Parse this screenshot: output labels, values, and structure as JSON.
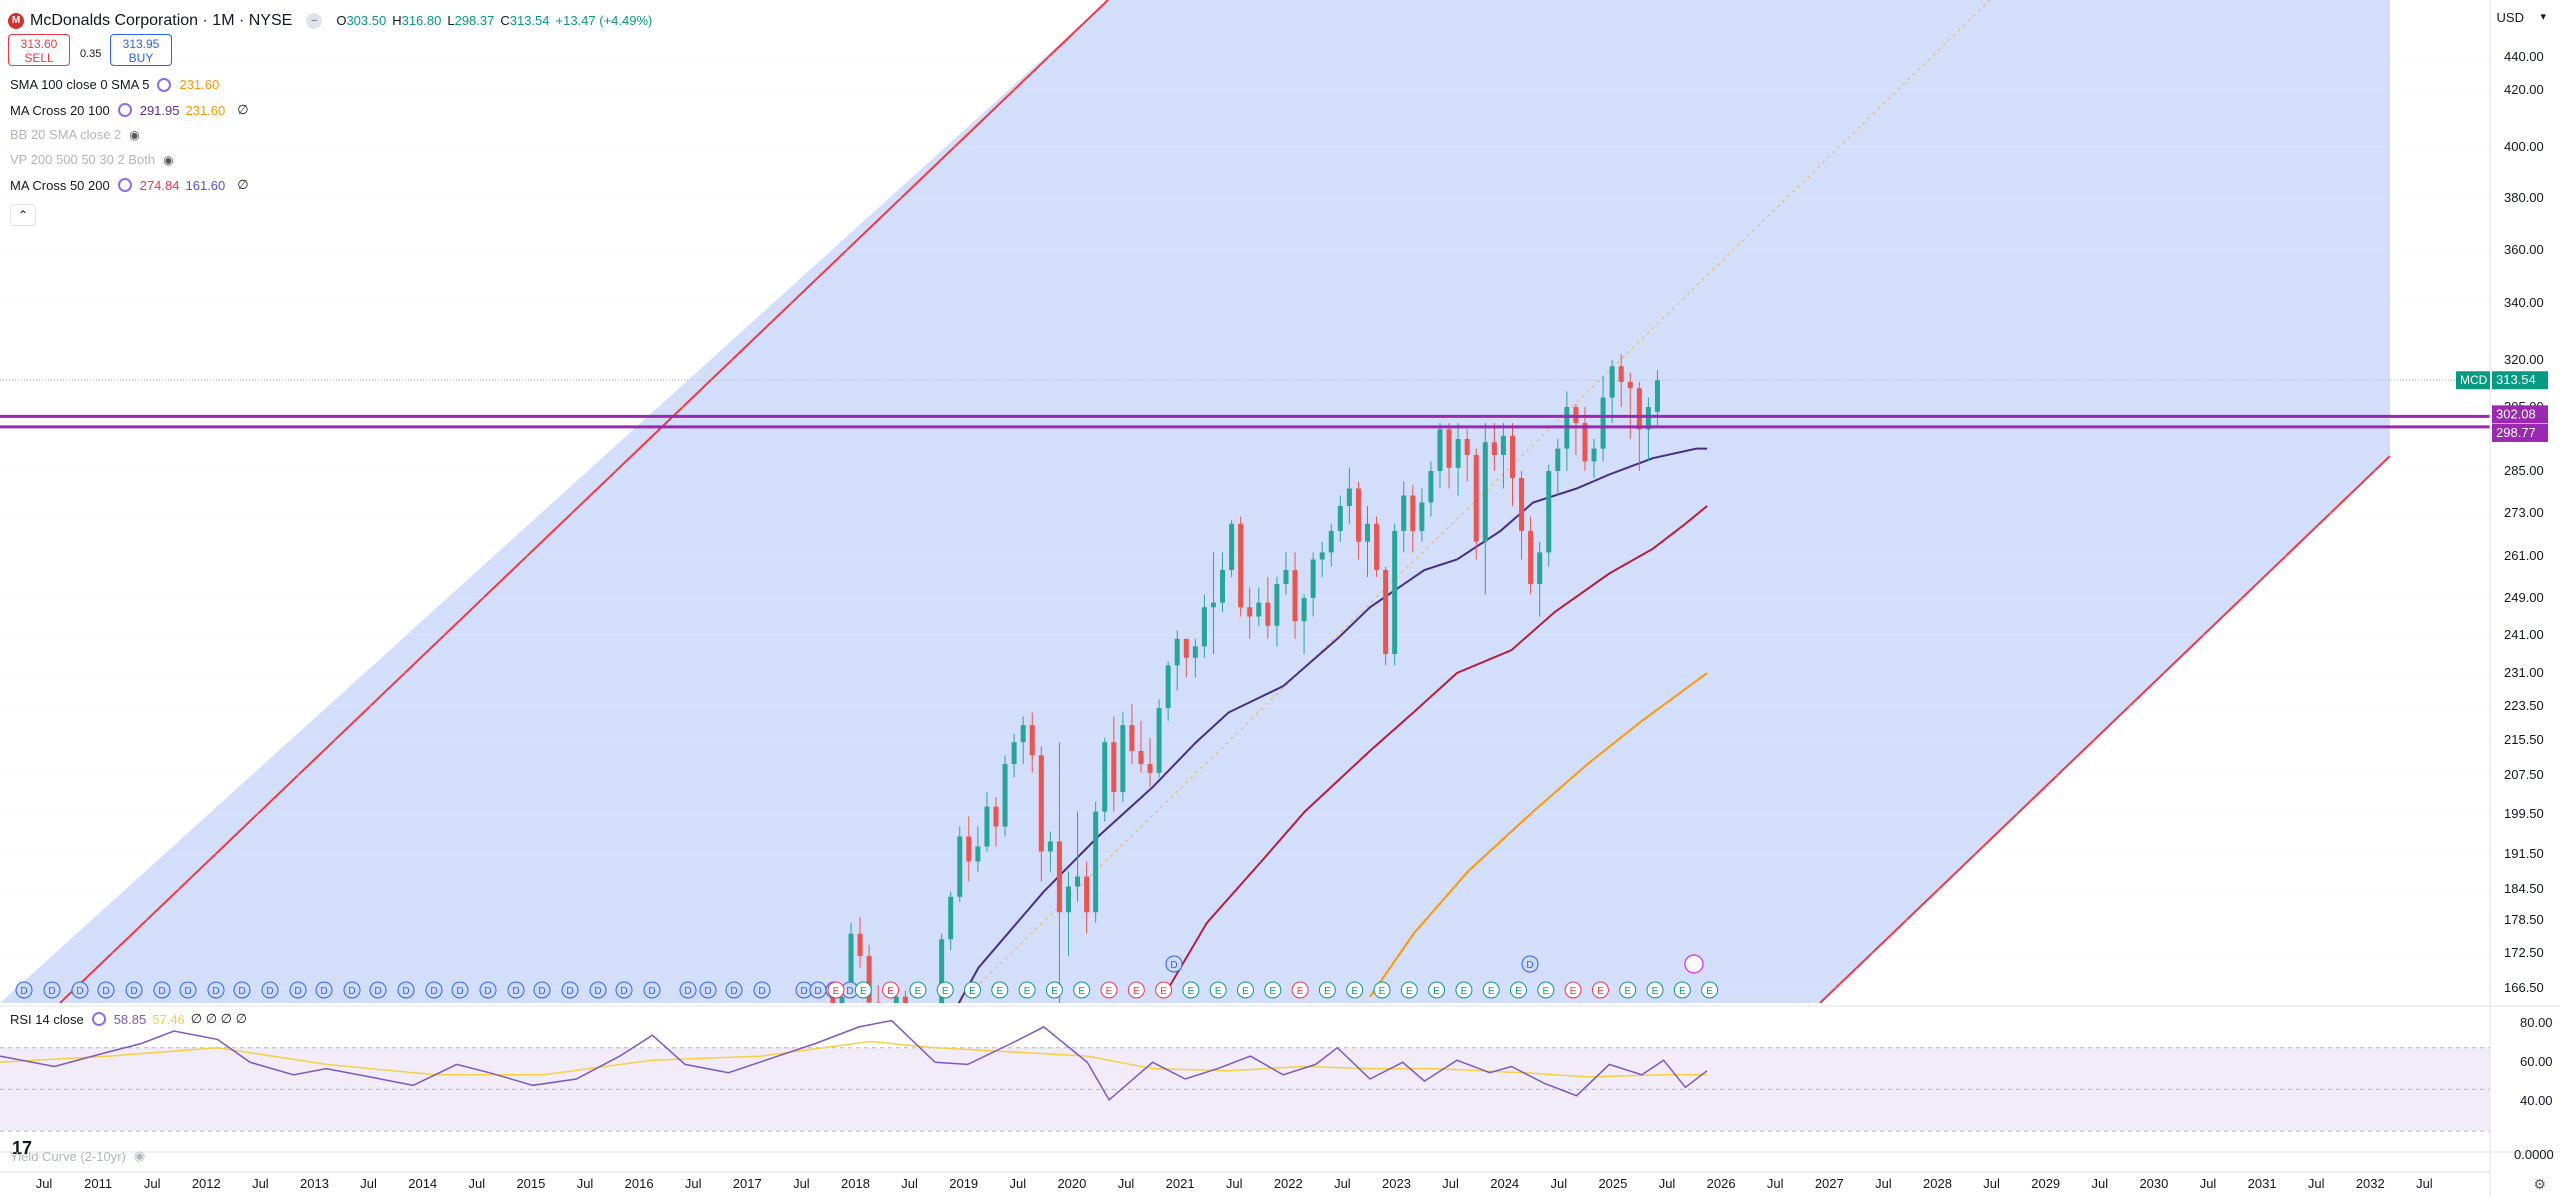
{
  "header": {
    "symbol_badge": "M",
    "title": "McDonalds Corporation · 1M · NYSE",
    "ohlc": [
      {
        "k": "O",
        "v": "303.50"
      },
      {
        "k": "H",
        "v": "316.80"
      },
      {
        "k": "L",
        "v": "298.37"
      },
      {
        "k": "C",
        "v": "313.54"
      },
      {
        "k": "",
        "v": "+13.47 (+4.49%)"
      }
    ],
    "sell_price": "313.60",
    "sell_label": "SELL",
    "spread": "0.35",
    "buy_price": "313.95",
    "buy_label": "BUY",
    "currency": "USD"
  },
  "indicators": [
    {
      "name": "SMA 100 close 0 SMA 5",
      "values": [
        "231.60"
      ],
      "colors": [
        "#ff9800"
      ],
      "eye": false,
      "zero": false,
      "muted": false
    },
    {
      "name": "MA Cross 20 100",
      "values": [
        "291.95",
        "231.60"
      ],
      "colors": [
        "#5b2c91",
        "#ff9800"
      ],
      "eye": false,
      "zero": true,
      "muted": false
    },
    {
      "name": "BB 20 SMA close 2",
      "values": [],
      "colors": [],
      "eye": true,
      "zero": false,
      "muted": true
    },
    {
      "name": "VP 200 500 50 30 2 Both",
      "values": [],
      "colors": [],
      "eye": true,
      "zero": false,
      "muted": true
    },
    {
      "name": "MA Cross 50 200",
      "values": [
        "274.84",
        "161.60"
      ],
      "colors": [
        "#f23645",
        "#5b4be0"
      ],
      "eye": false,
      "zero": true,
      "muted": false
    }
  ],
  "rsi": {
    "name": "RSI 14 close",
    "value": "58.85",
    "ma_value": "57.46",
    "extras": "∅ ∅ ∅ ∅",
    "levels": [
      "80.00",
      "60.00",
      "40.00"
    ]
  },
  "yield_curve": {
    "name": "Yield Curve (2-10yr)",
    "value": "0.0000"
  },
  "price_axis": {
    "ticks": [
      "440.00",
      "420.00",
      "400.00",
      "380.00",
      "360.00",
      "340.00",
      "320.00",
      "305.00",
      "285.00",
      "273.00",
      "261.00",
      "249.00",
      "241.00",
      "231.00",
      "223.50",
      "215.50",
      "207.50",
      "199.50",
      "191.50",
      "184.50",
      "178.50",
      "172.50",
      "166.50"
    ],
    "ticker_label": "MCD",
    "last_price": "313.54",
    "level1": "302.08",
    "level2": "298.77"
  },
  "time_axis": [
    "Jul",
    "2011",
    "Jul",
    "2012",
    "Jul",
    "2013",
    "Jul",
    "2014",
    "Jul",
    "2015",
    "Jul",
    "2016",
    "Jul",
    "2017",
    "Jul",
    "2018",
    "Jul",
    "2019",
    "Jul",
    "2020",
    "Jul",
    "2021",
    "Jul",
    "2022",
    "Jul",
    "2023",
    "Jul",
    "2024",
    "Jul",
    "2025",
    "Jul",
    "2026",
    "Jul",
    "2027",
    "Jul",
    "2028",
    "Jul",
    "2029",
    "Jul",
    "2030",
    "Jul",
    "2031",
    "Jul",
    "2032",
    "Jul"
  ],
  "colors": {
    "up": "#26a69a",
    "down": "#ef5350",
    "channel": "#f23645",
    "channel_fill": "#d1dcfb",
    "resistance": "#9c27b0",
    "ma20": "#4a2c86",
    "ma50": "#b71c3c",
    "ma100": "#ff9800",
    "rsi": "#7e57c2",
    "rsi_ma": "#f5d142"
  },
  "chart_data": {
    "type": "candlestick",
    "interval": "1M",
    "ylim": [
      163,
      452
    ],
    "x_period": [
      "2010-02",
      "2032-09"
    ],
    "first_candle": "2017-09",
    "candles": [
      [
        165,
        166,
        160,
        162
      ],
      [
        162,
        166,
        158,
        165
      ],
      [
        165,
        178,
        165,
        176
      ],
      [
        176,
        179,
        170,
        172
      ],
      [
        172,
        174,
        160,
        164
      ],
      [
        164,
        167,
        155,
        157
      ],
      [
        157,
        163,
        155,
        160
      ],
      [
        160,
        167,
        157,
        165
      ],
      [
        165,
        166,
        152,
        155
      ],
      [
        155,
        158,
        145,
        150
      ],
      [
        150,
        158,
        148,
        156
      ],
      [
        156,
        160,
        150,
        158
      ],
      [
        158,
        176,
        157,
        175
      ],
      [
        175,
        184,
        173,
        183
      ],
      [
        183,
        197,
        182,
        195
      ],
      [
        195,
        199,
        186,
        190
      ],
      [
        190,
        197,
        188,
        193
      ],
      [
        193,
        204,
        192,
        201
      ],
      [
        201,
        203,
        193,
        197
      ],
      [
        197,
        212,
        195,
        210
      ],
      [
        210,
        217,
        207,
        215
      ],
      [
        215,
        221,
        210,
        219
      ],
      [
        219,
        222,
        208,
        212
      ],
      [
        212,
        214,
        186,
        192
      ],
      [
        192,
        196,
        188,
        194
      ],
      [
        194,
        215,
        128,
        180
      ],
      [
        180,
        188,
        172,
        185
      ],
      [
        185,
        200,
        182,
        187
      ],
      [
        187,
        190,
        176,
        180
      ],
      [
        180,
        202,
        178,
        200
      ],
      [
        200,
        216,
        198,
        215
      ],
      [
        215,
        221,
        200,
        204
      ],
      [
        204,
        222,
        202,
        219
      ],
      [
        219,
        224,
        210,
        213
      ],
      [
        213,
        220,
        208,
        210
      ],
      [
        210,
        216,
        205,
        208
      ],
      [
        208,
        225,
        207,
        223
      ],
      [
        223,
        234,
        220,
        233
      ],
      [
        233,
        242,
        227,
        240
      ],
      [
        240,
        238,
        230,
        235
      ],
      [
        235,
        240,
        230,
        238
      ],
      [
        238,
        250,
        235,
        247
      ],
      [
        247,
        262,
        236,
        248
      ],
      [
        248,
        262,
        246,
        257
      ],
      [
        257,
        271,
        255,
        270
      ],
      [
        270,
        272,
        245,
        247
      ],
      [
        247,
        252,
        240,
        245
      ],
      [
        245,
        252,
        243,
        248
      ],
      [
        248,
        255,
        240,
        243
      ],
      [
        243,
        255,
        238,
        253
      ],
      [
        253,
        262,
        250,
        257
      ],
      [
        257,
        262,
        240,
        244
      ],
      [
        244,
        250,
        236,
        249
      ],
      [
        249,
        262,
        245,
        260
      ],
      [
        260,
        265,
        255,
        262
      ],
      [
        262,
        270,
        258,
        268
      ],
      [
        268,
        278,
        265,
        275
      ],
      [
        275,
        286,
        270,
        280
      ],
      [
        280,
        282,
        260,
        265
      ],
      [
        265,
        275,
        255,
        270
      ],
      [
        270,
        272,
        255,
        257
      ],
      [
        257,
        258,
        233,
        236
      ],
      [
        236,
        270,
        233,
        268
      ],
      [
        268,
        282,
        262,
        278
      ],
      [
        278,
        281,
        262,
        268
      ],
      [
        268,
        280,
        265,
        276
      ],
      [
        276,
        288,
        272,
        285
      ],
      [
        285,
        300,
        280,
        298
      ],
      [
        298,
        300,
        280,
        286
      ],
      [
        286,
        300,
        278,
        295
      ],
      [
        295,
        298,
        282,
        290
      ],
      [
        290,
        292,
        260,
        265
      ],
      [
        265,
        300,
        250,
        294
      ],
      [
        294,
        300,
        285,
        290
      ],
      [
        290,
        300,
        280,
        296
      ],
      [
        296,
        300,
        275,
        283
      ],
      [
        283,
        285,
        260,
        268
      ],
      [
        268,
        272,
        250,
        253
      ],
      [
        253,
        265,
        245,
        262
      ],
      [
        262,
        287,
        258,
        285
      ],
      [
        285,
        295,
        278,
        292
      ],
      [
        292,
        310,
        285,
        305
      ],
      [
        305,
        306,
        290,
        300
      ],
      [
        300,
        305,
        285,
        288
      ],
      [
        288,
        295,
        283,
        292
      ],
      [
        292,
        315,
        288,
        308
      ],
      [
        308,
        320,
        300,
        318
      ],
      [
        318,
        322,
        305,
        313
      ],
      [
        313,
        316,
        295,
        311
      ],
      [
        311,
        313,
        285,
        298
      ],
      [
        298,
        308,
        288,
        305
      ],
      [
        303.5,
        316.8,
        298.37,
        313.54
      ]
    ],
    "ma20": [
      [
        2018.7,
        160
      ],
      [
        2019.0,
        170
      ],
      [
        2019.6,
        184
      ],
      [
        2020.1,
        195
      ],
      [
        2020.6,
        205
      ],
      [
        2021.0,
        215
      ],
      [
        2021.3,
        222
      ],
      [
        2021.8,
        228
      ],
      [
        2022.3,
        240
      ],
      [
        2022.6,
        247
      ],
      [
        2023.1,
        257
      ],
      [
        2023.4,
        260
      ],
      [
        2023.8,
        268
      ],
      [
        2024.1,
        276
      ],
      [
        2024.5,
        280
      ],
      [
        2024.8,
        284
      ],
      [
        2025.2,
        289
      ],
      [
        2025.6,
        292
      ],
      [
        2025.7,
        292
      ]
    ],
    "ma50": [
      [
        2020.7,
        165
      ],
      [
        2021.1,
        178
      ],
      [
        2021.6,
        190
      ],
      [
        2022.0,
        200
      ],
      [
        2022.6,
        213
      ],
      [
        2023.0,
        222
      ],
      [
        2023.4,
        231
      ],
      [
        2023.9,
        237
      ],
      [
        2024.3,
        246
      ],
      [
        2024.8,
        256
      ],
      [
        2025.2,
        263
      ],
      [
        2025.5,
        270
      ],
      [
        2025.7,
        275
      ]
    ],
    "ma100": [
      [
        2022.6,
        165
      ],
      [
        2023.0,
        176
      ],
      [
        2023.5,
        188
      ],
      [
        2024.1,
        200
      ],
      [
        2024.6,
        210
      ],
      [
        2025.1,
        220
      ],
      [
        2025.7,
        231
      ]
    ],
    "channel_upper": [
      [
        2010.0,
        95
      ],
      [
        2019.4,
        452
      ]
    ],
    "channel_lower": [
      [
        2023.9,
        100
      ],
      [
        2032.0,
        290
      ]
    ],
    "channel_mid": [
      [
        2018.0,
        170
      ],
      [
        2028.2,
        452
      ]
    ],
    "resistance": [
      302.08,
      298.77
    ],
    "rsi": [
      [
        2010.0,
        66
      ],
      [
        2010.5,
        61
      ],
      [
        2011.0,
        68
      ],
      [
        2011.3,
        72
      ],
      [
        2011.6,
        78
      ],
      [
        2012.0,
        74
      ],
      [
        2012.3,
        63
      ],
      [
        2012.7,
        57
      ],
      [
        2013.0,
        60
      ],
      [
        2013.4,
        56
      ],
      [
        2013.8,
        52
      ],
      [
        2014.2,
        62
      ],
      [
        2014.5,
        58
      ],
      [
        2014.9,
        52
      ],
      [
        2015.3,
        55
      ],
      [
        2015.7,
        66
      ],
      [
        2016.0,
        76
      ],
      [
        2016.3,
        62
      ],
      [
        2016.7,
        58
      ],
      [
        2017.1,
        65
      ],
      [
        2017.5,
        72
      ],
      [
        2017.9,
        80
      ],
      [
        2018.2,
        83
      ],
      [
        2018.6,
        63
      ],
      [
        2018.9,
        62
      ],
      [
        2019.3,
        72
      ],
      [
        2019.6,
        80
      ],
      [
        2020.0,
        63
      ],
      [
        2020.2,
        45
      ],
      [
        2020.6,
        63
      ],
      [
        2020.9,
        55
      ],
      [
        2021.2,
        60
      ],
      [
        2021.5,
        66
      ],
      [
        2021.8,
        57
      ],
      [
        2022.1,
        62
      ],
      [
        2022.3,
        70
      ],
      [
        2022.6,
        55
      ],
      [
        2022.9,
        63
      ],
      [
        2023.1,
        54
      ],
      [
        2023.4,
        64
      ],
      [
        2023.7,
        58
      ],
      [
        2023.9,
        61
      ],
      [
        2024.2,
        53
      ],
      [
        2024.5,
        47
      ],
      [
        2024.8,
        62
      ],
      [
        2025.1,
        57
      ],
      [
        2025.3,
        64
      ],
      [
        2025.5,
        51
      ],
      [
        2025.7,
        59
      ]
    ],
    "rsi_ma": [
      [
        2010.0,
        63
      ],
      [
        2011.0,
        66
      ],
      [
        2012.0,
        70
      ],
      [
        2013.0,
        62
      ],
      [
        2014.0,
        57
      ],
      [
        2015.0,
        57
      ],
      [
        2016.0,
        64
      ],
      [
        2017.0,
        66
      ],
      [
        2018.0,
        73
      ],
      [
        2018.6,
        70
      ],
      [
        2019.3,
        68
      ],
      [
        2020.0,
        66
      ],
      [
        2020.6,
        60
      ],
      [
        2021.3,
        59
      ],
      [
        2022.0,
        61
      ],
      [
        2022.6,
        60
      ],
      [
        2023.2,
        60
      ],
      [
        2024.0,
        58
      ],
      [
        2024.6,
        56
      ],
      [
        2025.3,
        57
      ],
      [
        2025.7,
        57
      ]
    ],
    "rsi_ylim": [
      20,
      90
    ]
  }
}
